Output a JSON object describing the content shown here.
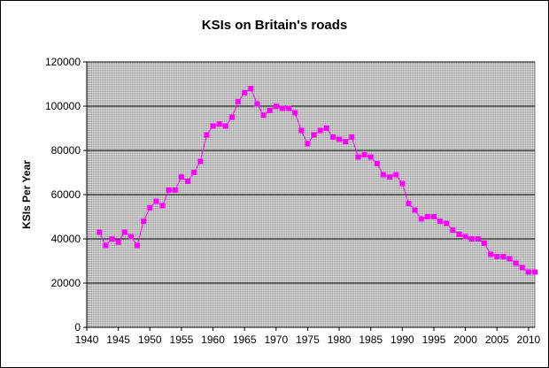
{
  "chart_data": {
    "type": "line",
    "title": "KSIs on Britain's roads",
    "xlabel": "",
    "ylabel": "KSIs Per Year",
    "xlim": [
      1940,
      2011
    ],
    "ylim": [
      0,
      120000
    ],
    "x_ticks": [
      "1940",
      "1945",
      "1950",
      "1955",
      "1960",
      "1965",
      "1970",
      "1975",
      "1980",
      "1985",
      "1990",
      "1995",
      "2000",
      "2005",
      "2010"
    ],
    "y_ticks": [
      "0",
      "20000",
      "40000",
      "60000",
      "80000",
      "100000",
      "120000"
    ],
    "grid": "horizontal",
    "legend": "none",
    "series": [
      {
        "color": "#ff00ff",
        "marker": "square",
        "x": [
          1942,
          1943,
          1944,
          1945,
          1946,
          1947,
          1948,
          1949,
          1950,
          1951,
          1952,
          1953,
          1954,
          1955,
          1956,
          1957,
          1958,
          1959,
          1960,
          1961,
          1962,
          1963,
          1964,
          1965,
          1966,
          1967,
          1968,
          1969,
          1970,
          1971,
          1972,
          1973,
          1974,
          1975,
          1976,
          1977,
          1978,
          1979,
          1980,
          1981,
          1982,
          1983,
          1984,
          1985,
          1986,
          1987,
          1988,
          1989,
          1990,
          1991,
          1992,
          1993,
          1994,
          1995,
          1996,
          1997,
          1998,
          1999,
          2000,
          2001,
          2002,
          2003,
          2004,
          2005,
          2006,
          2007,
          2008,
          2009,
          2010,
          2011
        ],
        "values": [
          43000,
          37000,
          40000,
          38500,
          43000,
          41000,
          37000,
          48000,
          54000,
          57000,
          55000,
          62000,
          62000,
          68000,
          66000,
          70000,
          75000,
          87000,
          91000,
          92000,
          91000,
          95000,
          102000,
          106000,
          108000,
          101000,
          96000,
          98000,
          100000,
          99000,
          99000,
          97000,
          89000,
          83000,
          87000,
          89000,
          90000,
          86000,
          85000,
          84000,
          86000,
          77000,
          78000,
          77000,
          74000,
          69000,
          68000,
          69000,
          65000,
          56000,
          53000,
          49000,
          50000,
          50000,
          48000,
          47000,
          44000,
          42000,
          41000,
          40000,
          40000,
          38000,
          33000,
          32000,
          32000,
          31000,
          29000,
          27000,
          25000,
          25000
        ]
      }
    ]
  },
  "colors": {
    "plot_background": "#c0c0c0",
    "gridline": "#000000",
    "series": "#ff00ff"
  }
}
